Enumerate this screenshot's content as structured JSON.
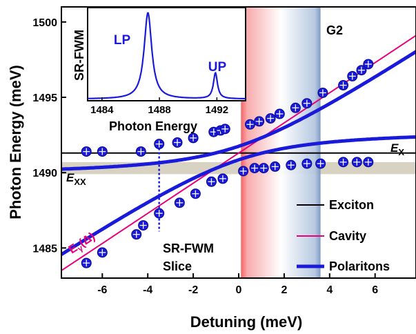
{
  "chart_data": {
    "type": "line",
    "xlabel": "Detuning (meV)",
    "ylabel": "Photon Energy (meV)",
    "xlim": [
      -7.8,
      7.8
    ],
    "ylim": [
      1483.0,
      1501.0
    ],
    "xticks": [
      -6,
      -4,
      -2,
      0,
      2,
      4,
      6
    ],
    "yticks": [
      1485,
      1490,
      1495,
      1500
    ],
    "x_tick_labels": [
      "-6",
      "-4",
      "-2",
      "0",
      "2",
      "4",
      "6"
    ],
    "y_tick_labels": [
      "1485",
      "1490",
      "1495",
      "1500"
    ],
    "colors": {
      "exciton": "#000000",
      "cavity": "#e8007a",
      "polariton": "#1a1adb",
      "xx_band": "#d8d2c2",
      "red_band": "#f5595d",
      "blue_band": "#7896c2"
    },
    "exciton_energy": 1491.3,
    "rabi_coupling": 2.0,
    "xx_band": [
      1489.9,
      1490.7
    ],
    "gradient_band_x": [
      0.1,
      3.6
    ],
    "slice_x": -3.5,
    "slice_ymin": 1486.1,
    "slice_ymax": 1491.9,
    "labels": {
      "g2": "G2",
      "ex": "E",
      "ex_sub": "X",
      "exx": "E",
      "exx_sub": "XX",
      "cavity_symbol": "E",
      "cavity_sub": "γ",
      "cavity_arg": "(Δ)",
      "slice_line1": "SR-FWM",
      "slice_line2": "Slice"
    },
    "legend": {
      "position": "bottom-right",
      "items": [
        "Exciton",
        "Cavity",
        "Polaritons"
      ]
    },
    "series": [
      {
        "name": "Polaritons",
        "role": "upper",
        "x": [
          -6.7,
          -6.0,
          -4.3,
          -3.5,
          -2.7,
          -2.0,
          -1.1,
          -0.8,
          -0.6,
          0.5,
          0.9,
          1.4,
          1.8,
          2.5,
          3.0,
          3.7,
          4.6,
          5.0,
          5.4,
          5.7
        ],
        "y": [
          1491.4,
          1491.4,
          1491.4,
          1491.9,
          1492.0,
          1492.3,
          1492.7,
          1492.8,
          1492.9,
          1493.2,
          1493.4,
          1493.6,
          1493.9,
          1494.3,
          1494.6,
          1495.3,
          1495.8,
          1496.4,
          1496.8,
          1497.2
        ]
      },
      {
        "name": "Polaritons",
        "role": "lower",
        "x": [
          -6.7,
          -6.0,
          -4.5,
          -4.2,
          -3.5,
          -2.6,
          -1.9,
          -1.2,
          -0.7,
          0.2,
          0.7,
          1.1,
          1.6,
          2.3,
          3.0,
          3.6,
          4.6,
          5.2,
          5.7
        ],
        "y": [
          1484.0,
          1484.7,
          1485.9,
          1486.5,
          1487.3,
          1488.0,
          1488.6,
          1489.4,
          1489.6,
          1490.1,
          1490.3,
          1490.3,
          1490.4,
          1490.5,
          1490.6,
          1490.6,
          1490.7,
          1490.7,
          1490.7
        ]
      }
    ],
    "inset": {
      "type": "line",
      "ylabel": "SR-FWM",
      "xlabel": "Photon Energy",
      "xlim": [
        1483.0,
        1494.0
      ],
      "ylim": [
        0,
        1.08
      ],
      "xticks": [
        1484,
        1488,
        1492
      ],
      "x_tick_labels": [
        "1484",
        "1488",
        "1492"
      ],
      "peaks": [
        {
          "label": "LP",
          "center": 1487.2,
          "height": 1.0,
          "width": 0.32
        },
        {
          "label": "UP",
          "center": 1491.9,
          "height": 0.3,
          "width": 0.17
        }
      ],
      "baseline": 0.02
    }
  }
}
